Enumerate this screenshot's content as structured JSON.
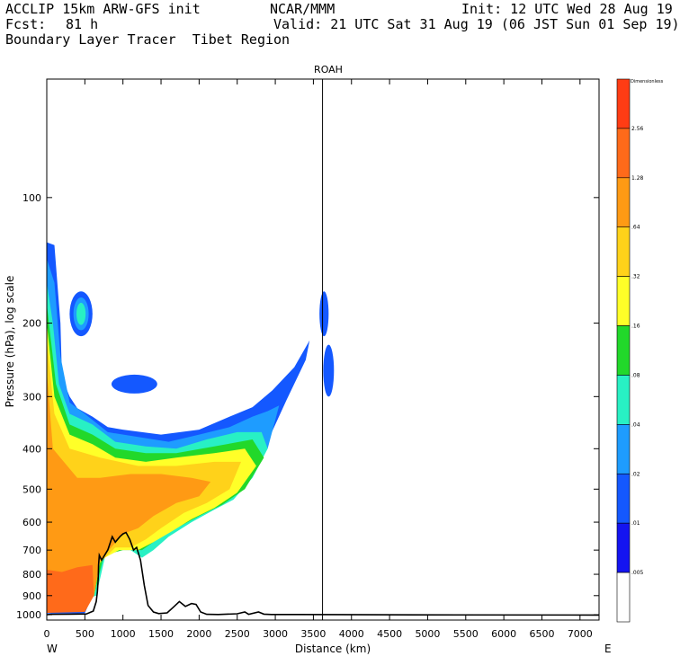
{
  "header": {
    "model": "ACCLIP 15km ARW-GFS init",
    "org": "NCAR/MMM",
    "init": "Init: 12 UTC Wed 28 Aug 19",
    "fcst_label": "Fcst:",
    "fcst_value": "81 h",
    "valid": "Valid: 21 UTC Sat 31 Aug 19 (06 JST Sun 01 Sep 19)",
    "product": "Boundary Layer Tracer  Tibet Region"
  },
  "chart_data": {
    "type": "cross-section",
    "title": "ROAH",
    "xlabel": "Distance (km)",
    "ylabel": "Pressure (hPa), log scale",
    "xlim": [
      0,
      7250
    ],
    "ylim": [
      1030,
      52
    ],
    "x_ticks": [
      0,
      500,
      1000,
      1500,
      2000,
      2500,
      3000,
      3500,
      4000,
      4500,
      5000,
      5500,
      6000,
      6500,
      7000
    ],
    "y_ticks": [
      100,
      200,
      300,
      400,
      500,
      600,
      700,
      800,
      900,
      1000
    ],
    "x_end_labels": {
      "left": "W",
      "right": "E"
    },
    "marker_line_x": 3620,
    "colorbar": {
      "title": "Dimensionless",
      "labels": [
        "2.56",
        "1.28",
        ".64",
        ".32",
        ".16",
        ".08",
        ".04",
        ".02",
        ".01",
        ".005"
      ],
      "colors": [
        "#ff3c14",
        "#ff6a1a",
        "#ff9a14",
        "#ffd21a",
        "#ffff28",
        "#22d82a",
        "#28f0c4",
        "#1e9cff",
        "#1458ff",
        "#1414f0",
        "#ffffff"
      ]
    },
    "terrain_profile": [
      [
        0,
        1000
      ],
      [
        60,
        998
      ],
      [
        300,
        997
      ],
      [
        520,
        996
      ],
      [
        610,
        980
      ],
      [
        650,
        930
      ],
      [
        665,
        880
      ],
      [
        675,
        820
      ],
      [
        680,
        760
      ],
      [
        690,
        720
      ],
      [
        720,
        740
      ],
      [
        800,
        700
      ],
      [
        860,
        650
      ],
      [
        900,
        670
      ],
      [
        960,
        650
      ],
      [
        1000,
        640
      ],
      [
        1040,
        635
      ],
      [
        1090,
        660
      ],
      [
        1140,
        700
      ],
      [
        1180,
        690
      ],
      [
        1230,
        740
      ],
      [
        1280,
        850
      ],
      [
        1330,
        950
      ],
      [
        1400,
        985
      ],
      [
        1470,
        994
      ],
      [
        1580,
        990
      ],
      [
        1660,
        960
      ],
      [
        1740,
        930
      ],
      [
        1820,
        955
      ],
      [
        1900,
        940
      ],
      [
        1960,
        945
      ],
      [
        2020,
        985
      ],
      [
        2100,
        998
      ],
      [
        2250,
        999
      ],
      [
        2500,
        995
      ],
      [
        2600,
        985
      ],
      [
        2650,
        998
      ],
      [
        2780,
        985
      ],
      [
        2850,
        997
      ],
      [
        2950,
        999
      ],
      [
        3300,
        999
      ],
      [
        4800,
        1001
      ],
      [
        7250,
        1002
      ]
    ],
    "tracer_regions": [
      {
        "level": ".01",
        "points": [
          [
            0,
            128
          ],
          [
            100,
            130
          ],
          [
            180,
            200
          ],
          [
            200,
            270
          ],
          [
            300,
            300
          ],
          [
            400,
            320
          ],
          [
            600,
            335
          ],
          [
            800,
            355
          ],
          [
            1000,
            360
          ],
          [
            1500,
            370
          ],
          [
            2000,
            360
          ],
          [
            2400,
            335
          ],
          [
            2700,
            318
          ],
          [
            2960,
            290
          ],
          [
            3250,
            255
          ],
          [
            3450,
            220
          ],
          [
            3400,
            245
          ],
          [
            3150,
            305
          ],
          [
            3000,
            350
          ],
          [
            2800,
            420
          ],
          [
            2500,
            480
          ],
          [
            2250,
            520
          ],
          [
            2000,
            540
          ],
          [
            1800,
            560
          ],
          [
            1600,
            600
          ],
          [
            1400,
            650
          ],
          [
            1250,
            690
          ],
          [
            1150,
            640
          ],
          [
            1000,
            620
          ],
          [
            700,
            700
          ],
          [
            600,
            900
          ],
          [
            500,
            992
          ],
          [
            0,
            994
          ]
        ]
      },
      {
        "level": ".02",
        "points": [
          [
            0,
            140
          ],
          [
            100,
            160
          ],
          [
            180,
            240
          ],
          [
            300,
            310
          ],
          [
            500,
            330
          ],
          [
            800,
            365
          ],
          [
            1200,
            375
          ],
          [
            1600,
            385
          ],
          [
            2000,
            370
          ],
          [
            2400,
            355
          ],
          [
            2700,
            335
          ],
          [
            2900,
            325
          ],
          [
            3050,
            315
          ],
          [
            2900,
            400
          ],
          [
            2700,
            440
          ],
          [
            2450,
            500
          ],
          [
            2150,
            530
          ],
          [
            1900,
            565
          ],
          [
            1650,
            620
          ],
          [
            1500,
            660
          ],
          [
            1300,
            710
          ],
          [
            1150,
            680
          ],
          [
            900,
            640
          ],
          [
            700,
            720
          ],
          [
            600,
            900
          ],
          [
            0,
            990
          ]
        ]
      },
      {
        "level": ".04",
        "points": [
          [
            0,
            160
          ],
          [
            80,
            200
          ],
          [
            160,
            280
          ],
          [
            300,
            330
          ],
          [
            600,
            350
          ],
          [
            900,
            385
          ],
          [
            1300,
            395
          ],
          [
            1700,
            400
          ],
          [
            2100,
            380
          ],
          [
            2500,
            365
          ],
          [
            2820,
            365
          ],
          [
            2900,
            400
          ],
          [
            2700,
            470
          ],
          [
            2450,
            530
          ],
          [
            2200,
            560
          ],
          [
            1900,
            600
          ],
          [
            1600,
            650
          ],
          [
            1400,
            700
          ],
          [
            1250,
            730
          ],
          [
            1050,
            690
          ],
          [
            800,
            680
          ],
          [
            650,
            900
          ],
          [
            0,
            990
          ]
        ]
      },
      {
        "level": ".08",
        "points": [
          [
            0,
            180
          ],
          [
            120,
            280
          ],
          [
            300,
            350
          ],
          [
            600,
            370
          ],
          [
            900,
            400
          ],
          [
            1300,
            410
          ],
          [
            1700,
            410
          ],
          [
            2200,
            395
          ],
          [
            2700,
            380
          ],
          [
            2850,
            420
          ],
          [
            2600,
            500
          ],
          [
            2300,
            545
          ],
          [
            2000,
            580
          ],
          [
            1700,
            620
          ],
          [
            1450,
            660
          ],
          [
            1250,
            700
          ],
          [
            1000,
            700
          ],
          [
            750,
            720
          ],
          [
            620,
            900
          ],
          [
            0,
            990
          ]
        ]
      },
      {
        "level": ".16",
        "points": [
          [
            0,
            200
          ],
          [
            100,
            300
          ],
          [
            300,
            370
          ],
          [
            600,
            390
          ],
          [
            900,
            420
          ],
          [
            1300,
            430
          ],
          [
            1700,
            420
          ],
          [
            2200,
            410
          ],
          [
            2600,
            400
          ],
          [
            2750,
            440
          ],
          [
            2500,
            510
          ],
          [
            2200,
            555
          ],
          [
            1900,
            590
          ],
          [
            1650,
            630
          ],
          [
            1400,
            670
          ],
          [
            1200,
            700
          ],
          [
            950,
            700
          ],
          [
            700,
            740
          ],
          [
            620,
            900
          ],
          [
            0,
            990
          ]
        ]
      },
      {
        "level": ".32",
        "points": [
          [
            0,
            220
          ],
          [
            100,
            330
          ],
          [
            300,
            400
          ],
          [
            700,
            420
          ],
          [
            1200,
            440
          ],
          [
            1700,
            440
          ],
          [
            2200,
            430
          ],
          [
            2550,
            430
          ],
          [
            2400,
            500
          ],
          [
            2100,
            540
          ],
          [
            1800,
            570
          ],
          [
            1500,
            620
          ],
          [
            1300,
            660
          ],
          [
            1100,
            690
          ],
          [
            900,
            690
          ],
          [
            700,
            750
          ],
          [
            620,
            900
          ],
          [
            0,
            990
          ]
        ]
      },
      {
        "level": ".64",
        "points": [
          [
            0,
            260
          ],
          [
            80,
            400
          ],
          [
            400,
            470
          ],
          [
            700,
            470
          ],
          [
            1100,
            460
          ],
          [
            1500,
            460
          ],
          [
            1900,
            470
          ],
          [
            2150,
            480
          ],
          [
            2000,
            520
          ],
          [
            1700,
            540
          ],
          [
            1400,
            580
          ],
          [
            1200,
            620
          ],
          [
            1000,
            640
          ],
          [
            700,
            740
          ],
          [
            620,
            900
          ],
          [
            0,
            990
          ]
        ]
      },
      {
        "level": "1.28",
        "points": [
          [
            0,
            780
          ],
          [
            200,
            790
          ],
          [
            400,
            770
          ],
          [
            600,
            760
          ],
          [
            620,
            900
          ],
          [
            500,
            985
          ],
          [
            0,
            990
          ]
        ]
      }
    ],
    "tracer_blobs": [
      {
        "level": ".01",
        "center": [
          450,
          190
        ],
        "rx": 150,
        "ry": 25
      },
      {
        "level": ".02",
        "center": [
          450,
          190
        ],
        "rx": 100,
        "ry": 18
      },
      {
        "level": ".04",
        "center": [
          450,
          190
        ],
        "rx": 60,
        "ry": 12
      },
      {
        "level": ".01",
        "center": [
          1150,
          280
        ],
        "rx": 300,
        "ry": 15
      },
      {
        "level": ".01",
        "center": [
          3640,
          190
        ],
        "rx": 60,
        "ry": 25
      },
      {
        "level": ".01",
        "center": [
          3700,
          260
        ],
        "rx": 70,
        "ry": 40
      }
    ]
  }
}
